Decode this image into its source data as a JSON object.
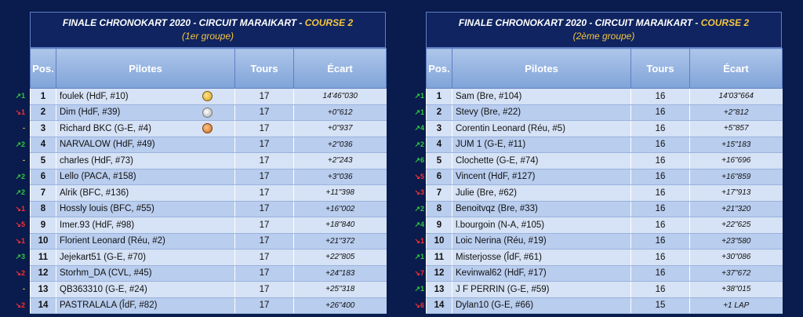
{
  "left": {
    "title_prefix": "FINALE CHRONOKART 2020   -   CIRCUIT MARAIKART   -   ",
    "course": "COURSE 2",
    "group": "(1er groupe)",
    "headers": [
      "Pos.",
      "Pilotes",
      "Tours",
      "Écart"
    ],
    "rows": [
      {
        "trend": "↗1",
        "dir": "up",
        "pos": "1",
        "pilot": "foulek (HdF, #10)",
        "medal": "gold",
        "tours": "17",
        "gap": "14'46\"030"
      },
      {
        "trend": "↘1",
        "dir": "down",
        "pos": "2",
        "pilot": "Dim (HdF, #39)",
        "medal": "silver",
        "tours": "17",
        "gap": "+0\"612"
      },
      {
        "trend": "-",
        "dir": "same",
        "pos": "3",
        "pilot": "Richard BKC (G-E, #4)",
        "medal": "bronze",
        "tours": "17",
        "gap": "+0\"937"
      },
      {
        "trend": "↗2",
        "dir": "up",
        "pos": "4",
        "pilot": "NARVALOW (HdF, #49)",
        "medal": "",
        "tours": "17",
        "gap": "+2\"036"
      },
      {
        "trend": "-",
        "dir": "same",
        "pos": "5",
        "pilot": "charles (HdF, #73)",
        "medal": "",
        "tours": "17",
        "gap": "+2\"243"
      },
      {
        "trend": "↗2",
        "dir": "up",
        "pos": "6",
        "pilot": "Lello (PACA, #158)",
        "medal": "",
        "tours": "17",
        "gap": "+3\"036"
      },
      {
        "trend": "↗2",
        "dir": "up",
        "pos": "7",
        "pilot": "Alrik (BFC, #136)",
        "medal": "",
        "tours": "17",
        "gap": "+11\"398"
      },
      {
        "trend": "↘1",
        "dir": "down",
        "pos": "8",
        "pilot": "Hossly louis (BFC, #55)",
        "medal": "",
        "tours": "17",
        "gap": "+16\"002"
      },
      {
        "trend": "↘5",
        "dir": "down",
        "pos": "9",
        "pilot": "Imer.93 (HdF, #98)",
        "medal": "",
        "tours": "17",
        "gap": "+18\"840"
      },
      {
        "trend": "↘1",
        "dir": "down",
        "pos": "10",
        "pilot": "Florient Leonard (Réu, #2)",
        "medal": "",
        "tours": "17",
        "gap": "+21\"372"
      },
      {
        "trend": "↗3",
        "dir": "up",
        "pos": "11",
        "pilot": "Jejekart51 (G-E, #70)",
        "medal": "",
        "tours": "17",
        "gap": "+22\"805"
      },
      {
        "trend": "↘2",
        "dir": "down",
        "pos": "12",
        "pilot": "Storhm_DA (CVL, #45)",
        "medal": "",
        "tours": "17",
        "gap": "+24\"183"
      },
      {
        "trend": "-",
        "dir": "same",
        "pos": "13",
        "pilot": "QB363310 (G-E, #24)",
        "medal": "",
        "tours": "17",
        "gap": "+25\"318"
      },
      {
        "trend": "↘2",
        "dir": "down",
        "pos": "14",
        "pilot": "PASTRALALA (ÎdF, #82)",
        "medal": "",
        "tours": "17",
        "gap": "+26\"400"
      }
    ]
  },
  "right": {
    "title_prefix": "FINALE CHRONOKART 2020   -   CIRCUIT MARAIKART   -   ",
    "course": "COURSE 2",
    "group": "(2ème groupe)",
    "headers": [
      "Pos.",
      "Pilotes",
      "Tours",
      "Écart"
    ],
    "rows": [
      {
        "trend": "↗1",
        "dir": "up",
        "pos": "1",
        "pilot": "Sam (Bre, #104)",
        "tours": "16",
        "gap": "14'03\"664"
      },
      {
        "trend": "↗1",
        "dir": "up",
        "pos": "2",
        "pilot": "Stevy (Bre, #22)",
        "tours": "16",
        "gap": "+2\"812"
      },
      {
        "trend": "↗4",
        "dir": "up",
        "pos": "3",
        "pilot": "Corentin Leonard (Réu, #5)",
        "tours": "16",
        "gap": "+5\"857"
      },
      {
        "trend": "↗2",
        "dir": "up",
        "pos": "4",
        "pilot": "JUM 1 (G-E, #11)",
        "tours": "16",
        "gap": "+15\"183"
      },
      {
        "trend": "↗6",
        "dir": "up",
        "pos": "5",
        "pilot": "Clochette (G-E, #74)",
        "tours": "16",
        "gap": "+16\"696"
      },
      {
        "trend": "↘5",
        "dir": "down",
        "pos": "6",
        "pilot": "Vincent (HdF, #127)",
        "tours": "16",
        "gap": "+16\"859"
      },
      {
        "trend": "↘3",
        "dir": "down",
        "pos": "7",
        "pilot": "Julie (Bre, #62)",
        "tours": "16",
        "gap": "+17\"913"
      },
      {
        "trend": "↗2",
        "dir": "up",
        "pos": "8",
        "pilot": "Benoitvqz (Bre, #33)",
        "tours": "16",
        "gap": "+21\"320"
      },
      {
        "trend": "↗4",
        "dir": "up",
        "pos": "9",
        "pilot": "l.bourgoin (N-A, #105)",
        "tours": "16",
        "gap": "+22\"625"
      },
      {
        "trend": "↘1",
        "dir": "down",
        "pos": "10",
        "pilot": "Loic Nerina (Réu, #19)",
        "tours": "16",
        "gap": "+23\"580"
      },
      {
        "trend": "↗1",
        "dir": "up",
        "pos": "11",
        "pilot": "Misterjosse (ÎdF, #61)",
        "tours": "16",
        "gap": "+30\"086"
      },
      {
        "trend": "↘7",
        "dir": "down",
        "pos": "12",
        "pilot": "Kevinwal62 (HdF, #17)",
        "tours": "16",
        "gap": "+37\"672"
      },
      {
        "trend": "↗1",
        "dir": "up",
        "pos": "13",
        "pilot": "J F PERRIN (G-E, #59)",
        "tours": "16",
        "gap": "+38\"015"
      },
      {
        "trend": "↘6",
        "dir": "down",
        "pos": "14",
        "pilot": "Dylan10 (G-E, #66)",
        "tours": "15",
        "gap": "+1 LAP"
      }
    ]
  },
  "colors": {
    "up": "#2ecc40",
    "down": "#ff3030",
    "same": "#f4c542"
  }
}
